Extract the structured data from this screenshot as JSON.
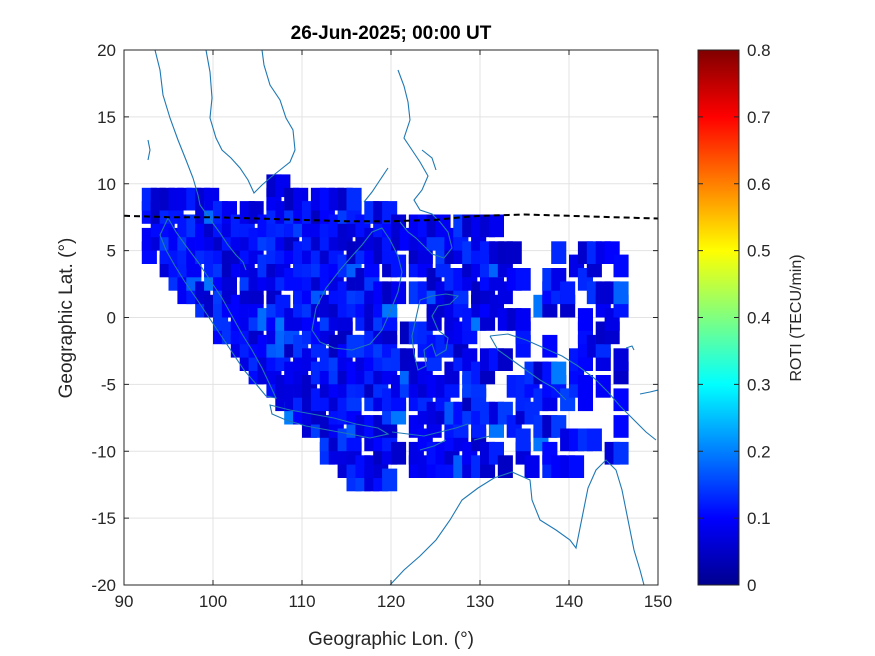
{
  "chart_data": {
    "type": "heatmap",
    "title": "26-Jun-2025; 00:00 UT",
    "xlabel": "Geographic Lon. (°)",
    "ylabel": "Geographic Lat. (°)",
    "xlim": [
      90,
      150
    ],
    "ylim": [
      -20,
      20
    ],
    "xticks": [
      "90",
      "100",
      "110",
      "120",
      "130",
      "140",
      "150"
    ],
    "yticks": [
      "20",
      "15",
      "10",
      "5",
      "0",
      "-5",
      "-10",
      "-15",
      "-20"
    ],
    "grid": true,
    "colorbar": {
      "label": "ROTI (TECU/min)",
      "range": [
        0,
        0.8
      ],
      "ticks": [
        "0",
        "0.1",
        "0.2",
        "0.3",
        "0.4",
        "0.5",
        "0.6",
        "0.7",
        "0.8"
      ],
      "colormap": "jet"
    },
    "magnetic_equator": {
      "style": "dashed",
      "color": "#000000",
      "lon": [
        90,
        95,
        100,
        105,
        110,
        115,
        120,
        125,
        128,
        130,
        135,
        140,
        145,
        150
      ],
      "lat": [
        7.6,
        7.5,
        7.5,
        7.4,
        7.3,
        7.2,
        7.2,
        7.3,
        7.5,
        7.6,
        7.7,
        7.6,
        7.5,
        7.4
      ]
    },
    "coastline_color": "#1f78b4",
    "roti_cells": {
      "typical_value_range": [
        0.05,
        0.15
      ],
      "max_value_observed": 0.2,
      "lon_range": [
        92,
        145
      ],
      "lat_range": [
        -13,
        9
      ]
    }
  }
}
